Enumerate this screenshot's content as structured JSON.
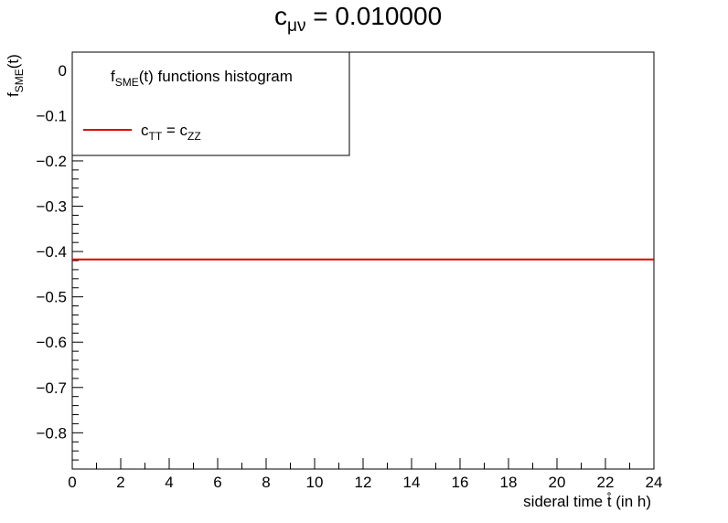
{
  "chart_data": {
    "type": "line",
    "title": {
      "base": "c",
      "sub": "μν",
      "rest": " = 0.010000"
    },
    "xlabel": "sideral time  t̊ (in h)",
    "ylabel": {
      "base": "f",
      "sub": "SME",
      "rest": "(t)"
    },
    "xlim": [
      0,
      24
    ],
    "ylim": [
      -0.88,
      0.04
    ],
    "x_ticks": [
      0,
      2,
      4,
      6,
      8,
      10,
      12,
      14,
      16,
      18,
      20,
      22,
      24
    ],
    "x_tick_labels": [
      "0",
      "2",
      "4",
      "6",
      "8",
      "10",
      "12",
      "14",
      "16",
      "18",
      "20",
      "22",
      "24"
    ],
    "y_ticks": [
      0,
      -0.1,
      -0.2,
      -0.3,
      -0.4,
      -0.5,
      -0.6,
      -0.7,
      -0.8
    ],
    "y_tick_labels": [
      "0",
      "−0.1",
      "−0.2",
      "−0.3",
      "−0.4",
      "−0.5",
      "−0.6",
      "−0.7",
      "−0.8"
    ],
    "grid": false,
    "legend": {
      "placement": "top-left",
      "header": {
        "base": "f",
        "sub": "SME",
        "rest": "(t) functions histogram"
      },
      "entry": {
        "a": "c",
        "a_sub": "TT",
        "mid": " = c",
        "b_sub": "ZZ"
      }
    },
    "series": [
      {
        "color": "#e00000",
        "x": [
          0,
          24
        ],
        "y": [
          -0.4175,
          -0.4175
        ]
      }
    ]
  }
}
